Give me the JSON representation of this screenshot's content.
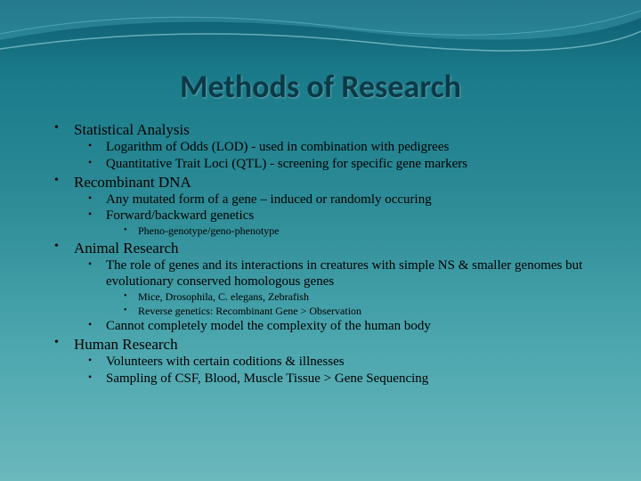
{
  "title": "Methods of Research",
  "bullets": [
    {
      "text": "Statistical Analysis",
      "children": [
        {
          "text": "Logarithm of Odds (LOD) - used in combination with pedigrees"
        },
        {
          "text": "Quantitative Trait Loci (QTL) - screening for specific gene markers"
        }
      ]
    },
    {
      "text": "Recombinant DNA",
      "children": [
        {
          "text": "Any mutated form of a gene – induced or randomly occuring"
        },
        {
          "text": "Forward/backward genetics",
          "children": [
            {
              "text": "Pheno-genotype/geno-phenotype"
            }
          ]
        }
      ]
    },
    {
      "text": "Animal Research",
      "children": [
        {
          "text": "The role of genes and its interactions in creatures with simple NS & smaller genomes but evolutionary conserved homologous genes",
          "children": [
            {
              "text": "Mice, Drosophila, C. elegans, Zebrafish"
            },
            {
              "text": "Reverse genetics: Recombinant Gene > Observation"
            }
          ]
        },
        {
          "text": "Cannot completely model the complexity of the human body"
        }
      ]
    },
    {
      "text": "Human Research",
      "children": [
        {
          "text": "Volunteers with certain coditions & illnesses"
        },
        {
          "text": "Sampling of CSF, Blood, Muscle Tissue > Gene Sequencing"
        }
      ]
    }
  ],
  "colors": {
    "title": "#0b3a47",
    "text": "#000000",
    "bg_top": "#0d5a6f",
    "bg_bottom": "#6bb8bd",
    "swoosh1": "#4fb8c4",
    "swoosh2": "#7fd1d8"
  }
}
